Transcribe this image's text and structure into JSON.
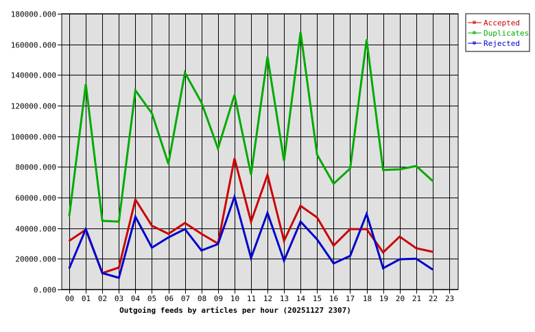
{
  "chart_data": {
    "type": "line",
    "title": "",
    "xlabel": "Outgoing feeds by articles per hour (20251127 2307)",
    "ylabel": "",
    "ylim": [
      0,
      180000
    ],
    "yticks": [
      "0.000",
      "20000.000",
      "40000.000",
      "60000.000",
      "80000.000",
      "100000.000",
      "120000.000",
      "140000.000",
      "160000.000",
      "180000.000"
    ],
    "categories": [
      "00",
      "01",
      "02",
      "03",
      "04",
      "05",
      "06",
      "07",
      "08",
      "09",
      "10",
      "11",
      "12",
      "13",
      "14",
      "15",
      "16",
      "17",
      "18",
      "19",
      "20",
      "21",
      "22",
      "23"
    ],
    "grid": true,
    "legend_position": "top-right",
    "series": [
      {
        "name": "Accepted",
        "color": "#cc0000",
        "values": [
          31800,
          39000,
          10700,
          14300,
          58700,
          41600,
          36300,
          43400,
          36300,
          30000,
          85500,
          44300,
          74800,
          31800,
          54600,
          47000,
          28700,
          39400,
          39400,
          24200,
          34500,
          26900,
          24600,
          null
        ]
      },
      {
        "name": "Duplicates",
        "color": "#00aa00",
        "values": [
          47900,
          134000,
          44800,
          44300,
          130000,
          115000,
          82000,
          141500,
          122000,
          92000,
          127000,
          75000,
          152000,
          84000,
          168000,
          88000,
          69000,
          79000,
          163000,
          78000,
          78400,
          80600,
          70800,
          null
        ]
      },
      {
        "name": "Rejected",
        "color": "#0000cc",
        "values": [
          13900,
          39400,
          10700,
          7600,
          47500,
          27300,
          34000,
          39400,
          25500,
          29600,
          60500,
          20600,
          50000,
          18800,
          44300,
          32700,
          17000,
          21900,
          49300,
          13900,
          19700,
          20100,
          13000,
          null
        ]
      }
    ]
  }
}
